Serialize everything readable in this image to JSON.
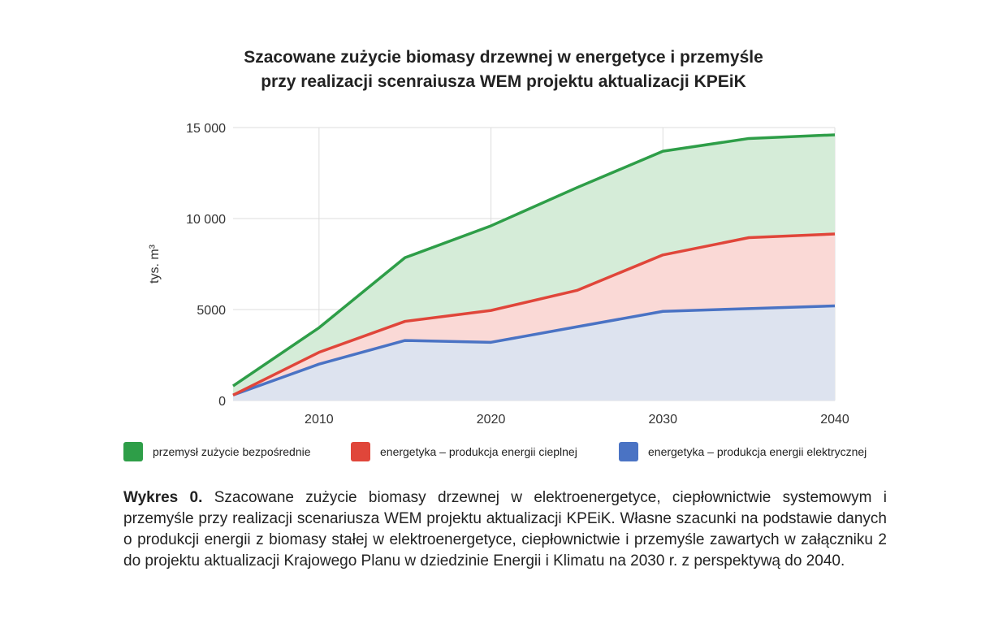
{
  "title": {
    "line1": "Szacowane zużycie biomasy drzewnej w energetyce i przemyśle",
    "line2": "przy realizacji scenraiusza WEM projektu aktualizacji KPEiK"
  },
  "colors": {
    "green_line": "#2e9e48",
    "green_fill": "#d5ecd8",
    "red_line": "#e0463a",
    "red_fill": "#fad9d6",
    "blue_line": "#4a73c4",
    "blue_fill": "#dde3ef",
    "grid": "#dddddd"
  },
  "chart_data": {
    "type": "area",
    "stacked": true,
    "ylabel": "tys. m³",
    "ylim": [
      0,
      15000
    ],
    "xlim": [
      2005,
      2040
    ],
    "xticks": [
      "2010",
      "2020",
      "2030",
      "2040"
    ],
    "yticks": [
      "0",
      "5000",
      "10 000",
      "15 000"
    ],
    "x": [
      2005,
      2010,
      2015,
      2020,
      2025,
      2030,
      2035,
      2040
    ],
    "grid": true,
    "legend_position": "bottom",
    "series": [
      {
        "name": "energetyka – produkcja energii elektrycznej",
        "color_key": "blue",
        "values": [
          300,
          2000,
          3300,
          3200,
          4050,
          4900,
          5050,
          5200
        ]
      },
      {
        "name": "energetyka – produkcja energii cieplnej",
        "color_key": "red",
        "values": [
          0,
          650,
          1050,
          1750,
          2000,
          3100,
          3900,
          3950
        ]
      },
      {
        "name": "przemysł zużycie bezpośrednie",
        "color_key": "green",
        "values": [
          500,
          1350,
          3500,
          4650,
          5650,
          5700,
          5450,
          5450
        ]
      }
    ]
  },
  "legend": {
    "items": [
      {
        "label": "przemysł zużycie bezpośrednie",
        "color": "#2e9e48"
      },
      {
        "label": "energetyka – produkcja energii cieplnej",
        "color": "#e0463a"
      },
      {
        "label": "energetyka – produkcja energii elektrycznej",
        "color": "#4a73c4"
      }
    ]
  },
  "caption": {
    "label": "Wykres 0.",
    "text": "Szacowane zużycie biomasy drzewnej w elektroenergetyce, ciepłownictwie systemowym i przemyśle przy realizacji scenariusza WEM projektu aktualizacji KPEiK. Własne szacunki na podstawie danych o produkcji energii z biomasy stałej w elektroenergetyce, ciepłownictwie i przemyśle zawartych w załączniku 2 do projektu aktualizacji Krajowego Planu w dziedzinie Energii i Klimatu na 2030 r. z perspektywą do 2040."
  }
}
